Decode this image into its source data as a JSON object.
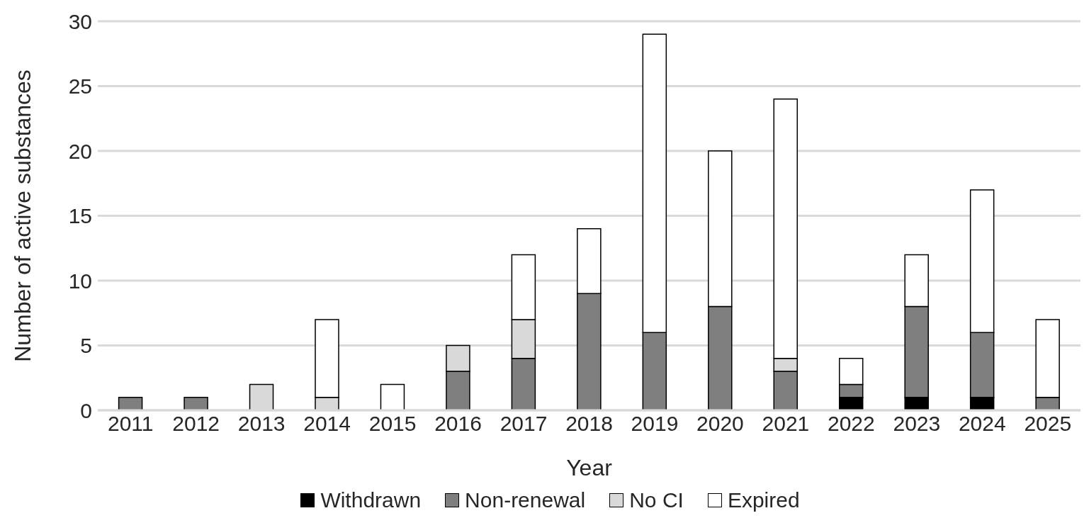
{
  "chart_data": {
    "type": "bar",
    "stacked": true,
    "xlabel": "Year",
    "ylabel": "Number of active substances",
    "categories": [
      "2011",
      "2012",
      "2013",
      "2014",
      "2015",
      "2016",
      "2017",
      "2018",
      "2019",
      "2020",
      "2021",
      "2022",
      "2023",
      "2024",
      "2025"
    ],
    "series": [
      {
        "name": "Withdrawn",
        "color": "#000000",
        "values": [
          0,
          0,
          0,
          0,
          0,
          0,
          0,
          0,
          0,
          0,
          0,
          1,
          1,
          1,
          0
        ]
      },
      {
        "name": "Non-renewal",
        "color": "#7f7f7f",
        "values": [
          1,
          1,
          0,
          0,
          0,
          3,
          4,
          9,
          6,
          8,
          3,
          1,
          7,
          5,
          1
        ]
      },
      {
        "name": "No CI",
        "color": "#d9d9d9",
        "values": [
          0,
          0,
          2,
          1,
          0,
          2,
          3,
          0,
          0,
          0,
          1,
          0,
          0,
          0,
          0
        ]
      },
      {
        "name": "Expired",
        "color": "#ffffff",
        "values": [
          0,
          0,
          0,
          6,
          2,
          0,
          5,
          5,
          23,
          12,
          20,
          2,
          4,
          11,
          6
        ]
      }
    ],
    "ylim": [
      0,
      30
    ],
    "yticks": [
      0,
      5,
      10,
      15,
      20,
      25,
      30
    ],
    "grid": "y",
    "legend": "bottom"
  }
}
